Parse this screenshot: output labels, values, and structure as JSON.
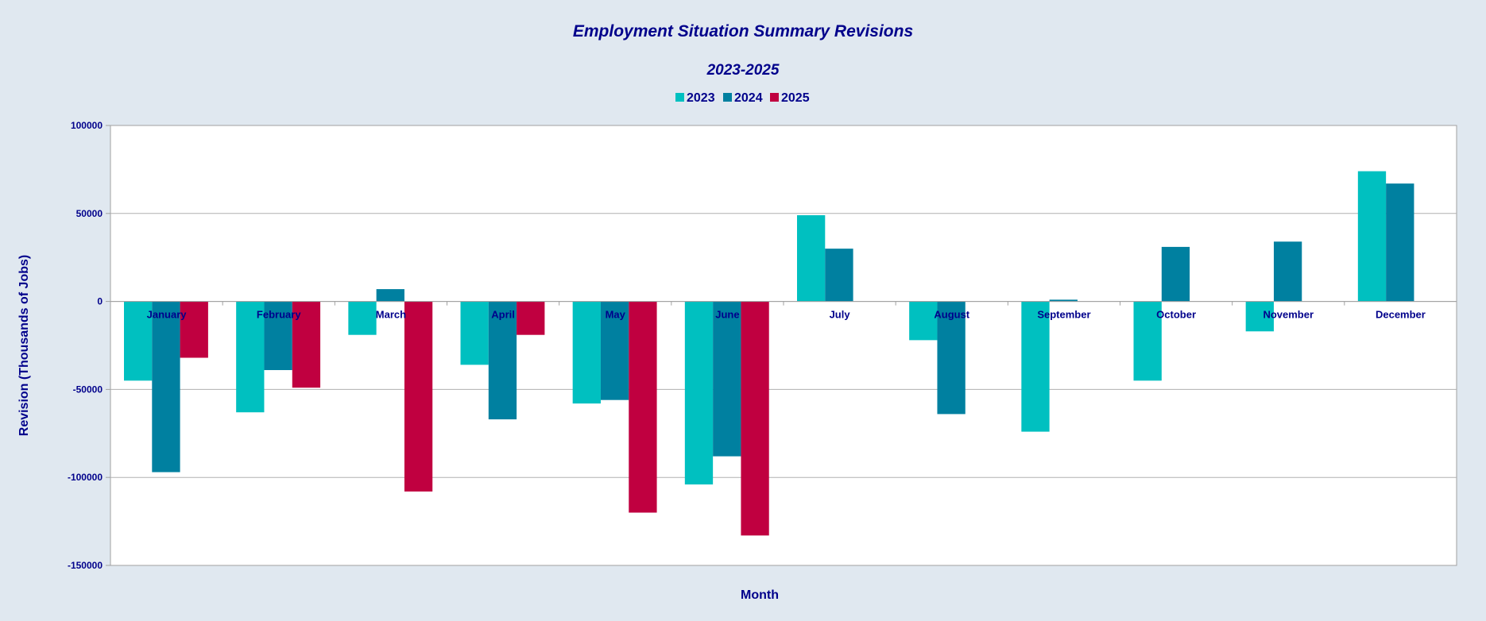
{
  "chart_data": {
    "type": "bar",
    "title": "Employment Situation Summary Revisions",
    "subtitle": "2023-2025",
    "xlabel": "Month",
    "ylabel": "Revision (Thousands of Jobs)",
    "ylim": [
      -150000,
      100000
    ],
    "yticks": [
      100000,
      50000,
      0,
      -50000,
      -100000,
      -150000
    ],
    "grid": true,
    "legend": "top-center",
    "categories": [
      "January",
      "February",
      "March",
      "April",
      "May",
      "June",
      "July",
      "August",
      "September",
      "October",
      "November",
      "December"
    ],
    "series": [
      {
        "name": "2023",
        "color": "#00c0c0",
        "values": [
          -45000,
          -63000,
          -19000,
          -36000,
          -58000,
          -104000,
          49000,
          -22000,
          -74000,
          -45000,
          -17000,
          74000
        ]
      },
      {
        "name": "2024",
        "color": "#0080a0",
        "values": [
          -97000,
          -39000,
          7000,
          -67000,
          -56000,
          -88000,
          30000,
          -64000,
          1000,
          31000,
          34000,
          67000
        ]
      },
      {
        "name": "2025",
        "color": "#c00040",
        "values": [
          -32000,
          -49000,
          -108000,
          -19000,
          -120000,
          -133000,
          null,
          null,
          null,
          null,
          null,
          null
        ]
      }
    ]
  }
}
